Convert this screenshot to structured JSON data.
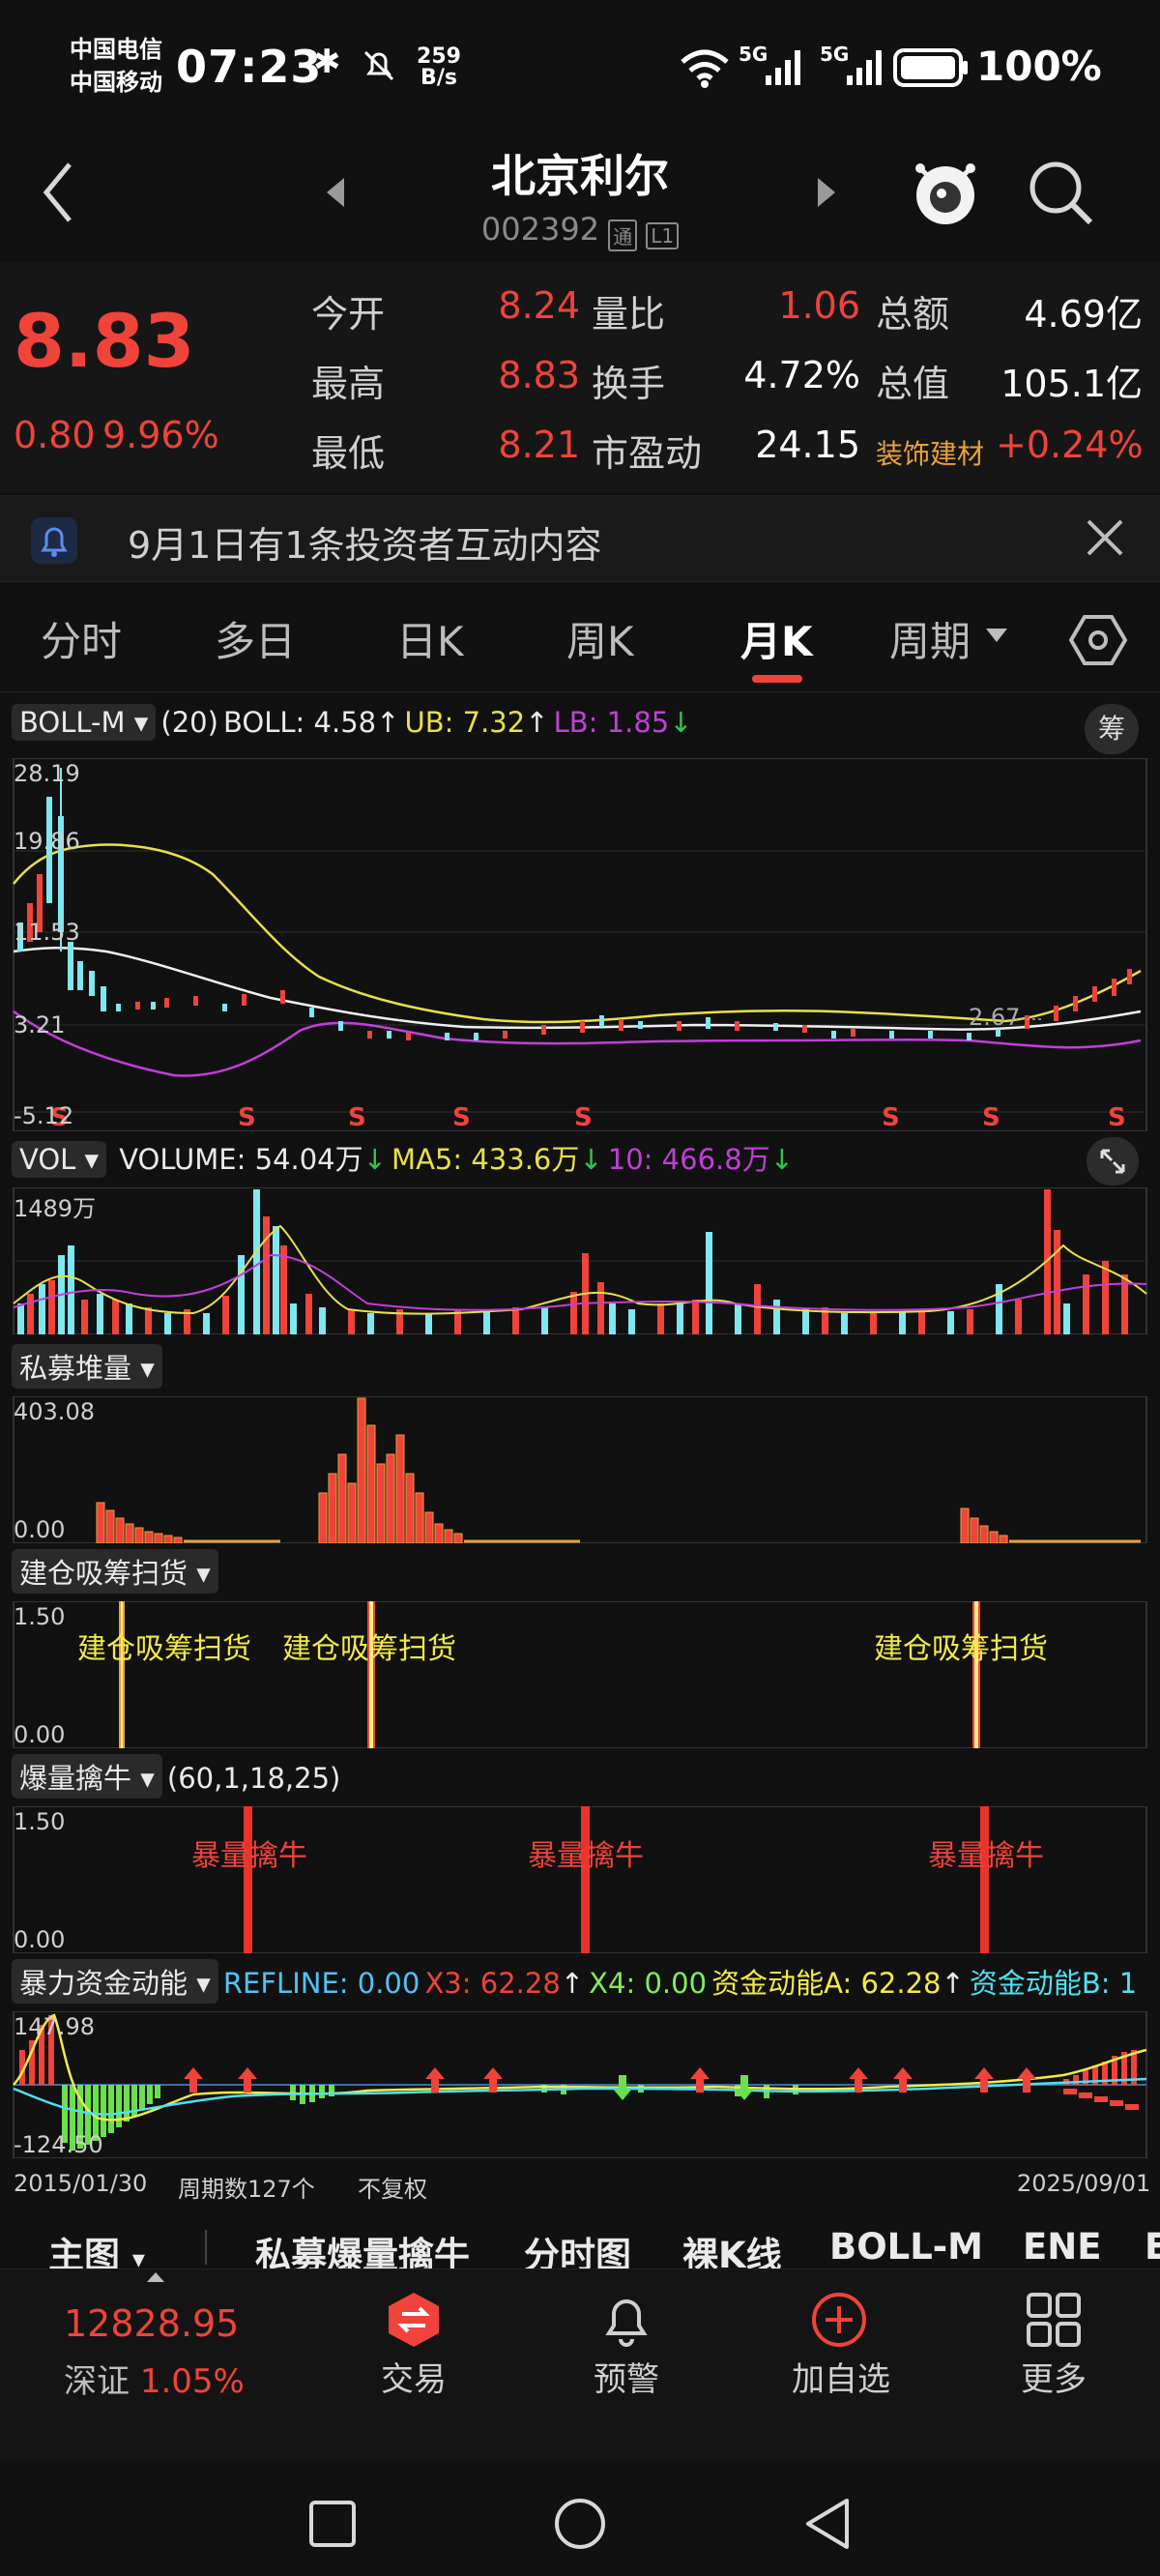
{
  "status_bar": {
    "carrier1": "中国电信",
    "carrier2": "中国移动",
    "time": "07:23",
    "net_speed_value": "259",
    "net_speed_unit": "B/s",
    "signal1_label": "5G",
    "signal2_label": "5G",
    "battery": "100%"
  },
  "header": {
    "title": "北京利尔",
    "code": "002392",
    "tag1": "通",
    "tag2": "L1"
  },
  "quote": {
    "price": "8.83",
    "change": "0.80",
    "change_pct": "9.96%",
    "rows": [
      [
        {
          "label": "今开",
          "value": "8.24"
        },
        {
          "label": "量比",
          "value": "1.06"
        },
        {
          "label": "总额",
          "value": "4.69亿"
        }
      ],
      [
        {
          "label": "最高",
          "value": "8.83"
        },
        {
          "label": "换手",
          "value": "4.72%"
        },
        {
          "label": "总值",
          "value": "105.1亿"
        }
      ],
      [
        {
          "label": "最低",
          "value": "8.21"
        },
        {
          "label": "市盈动",
          "value": "24.15"
        },
        {
          "label": "装饰建材",
          "value": "+0.24%"
        }
      ]
    ]
  },
  "notice": {
    "text": "9月1日有1条投资者互动内容"
  },
  "tabs": [
    "分时",
    "多日",
    "日K",
    "周K",
    "月K",
    "周期"
  ],
  "active_tab": "月K",
  "chart": {
    "boll": {
      "name": "BOLL-M",
      "params": "(20)",
      "boll": "BOLL: 4.58",
      "ub": "UB: 7.32",
      "lb": "LB: 1.85",
      "axis": [
        "28.19",
        "19.86",
        "11.53",
        "3.21",
        "-5.12"
      ],
      "chip_button": "筹",
      "min_label": "2.67",
      "signal_letter": "S"
    },
    "volume": {
      "name": "VOL",
      "volume": "VOLUME: 54.04万",
      "ma5": "MA5: 433.6万",
      "ma10": "10: 466.8万",
      "axis_top": "1489万"
    },
    "simu": {
      "name": "私募堆量",
      "axis_top": "403.08",
      "axis_bottom": "0.00"
    },
    "jiancang": {
      "name": "建仓吸筹扫货",
      "axis_top": "1.50",
      "axis_bottom": "0.00",
      "signal": "建仓吸筹扫货"
    },
    "baoliang": {
      "name": "爆量擒牛",
      "params": "(60,1,18,25)",
      "axis_top": "1.50",
      "axis_bottom": "0.00",
      "signal": "暴量擒牛"
    },
    "baoli": {
      "name": "暴力资金动能",
      "refline": "REFLINE: 0.00",
      "x3": "X3: 62.28",
      "x4": "X4: 0.00",
      "a": "资金动能A: 62.28",
      "b": "资金动能B: 1",
      "axis_top": "147.98",
      "axis_bottom": "-124.50"
    },
    "footer": {
      "start": "2015/01/30",
      "period_count": "周期数127个",
      "adjust": "不复权",
      "end": "2025/09/01"
    }
  },
  "subbar": [
    "主图",
    "私募爆量擒牛",
    "分时图",
    "裸K线",
    "BOLL-M",
    "ENE",
    "E"
  ],
  "bottom_nav": {
    "index_value": "12828.95",
    "index_name": "深证",
    "index_pct": "1.05%",
    "items": [
      "交易",
      "预警",
      "加自选",
      "更多"
    ]
  },
  "colors": {
    "up": "#f0433a",
    "down": "#7ee7f0",
    "accent": "#f0433a",
    "yellow": "#e8e04a",
    "magenta": "#c23fd8"
  }
}
